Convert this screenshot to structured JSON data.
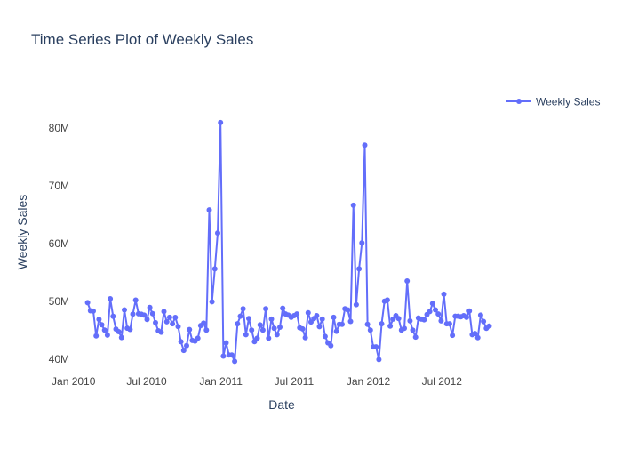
{
  "colors": {
    "series": "#636efa",
    "text": "#2a3f5f",
    "tick": "#444444",
    "background": "#ffffff"
  },
  "chart_data": {
    "type": "line",
    "title": "Time Series Plot of Weekly Sales",
    "xlabel": "Date",
    "ylabel": "Weekly Sales",
    "x_ticks": [
      {
        "date": "2010-01-01",
        "label": "Jan 2010"
      },
      {
        "date": "2010-07-01",
        "label": "Jul 2010"
      },
      {
        "date": "2011-01-01",
        "label": "Jan 2011"
      },
      {
        "date": "2011-07-01",
        "label": "Jul 2011"
      },
      {
        "date": "2012-01-01",
        "label": "Jan 2012"
      },
      {
        "date": "2012-07-01",
        "label": "Jul 2012"
      }
    ],
    "y_ticks": [
      {
        "value": 40000000,
        "label": "40M"
      },
      {
        "value": 50000000,
        "label": "50M"
      },
      {
        "value": 60000000,
        "label": "60M"
      },
      {
        "value": 70000000,
        "label": "70M"
      },
      {
        "value": 80000000,
        "label": "80M"
      }
    ],
    "xlim": [
      "2009-12-26",
      "2012-11-16"
    ],
    "ylim": [
      37500000,
      87500000
    ],
    "grid": false,
    "legend": {
      "position": "top-right",
      "entries": [
        "Weekly Sales"
      ]
    },
    "series": [
      {
        "name": "Weekly Sales",
        "mode": "lines+markers",
        "x": [
          "2010-02-05",
          "2010-02-12",
          "2010-02-19",
          "2010-02-26",
          "2010-03-05",
          "2010-03-12",
          "2010-03-19",
          "2010-03-26",
          "2010-04-02",
          "2010-04-09",
          "2010-04-16",
          "2010-04-23",
          "2010-04-30",
          "2010-05-07",
          "2010-05-14",
          "2010-05-21",
          "2010-05-28",
          "2010-06-04",
          "2010-06-11",
          "2010-06-18",
          "2010-06-25",
          "2010-07-02",
          "2010-07-09",
          "2010-07-16",
          "2010-07-23",
          "2010-07-30",
          "2010-08-06",
          "2010-08-13",
          "2010-08-20",
          "2010-08-27",
          "2010-09-03",
          "2010-09-10",
          "2010-09-17",
          "2010-09-24",
          "2010-10-01",
          "2010-10-08",
          "2010-10-15",
          "2010-10-22",
          "2010-10-29",
          "2010-11-05",
          "2010-11-12",
          "2010-11-19",
          "2010-11-26",
          "2010-12-03",
          "2010-12-10",
          "2010-12-17",
          "2010-12-24",
          "2010-12-31",
          "2011-01-07",
          "2011-01-14",
          "2011-01-21",
          "2011-01-28",
          "2011-02-04",
          "2011-02-11",
          "2011-02-18",
          "2011-02-25",
          "2011-03-04",
          "2011-03-11",
          "2011-03-18",
          "2011-03-25",
          "2011-04-01",
          "2011-04-08",
          "2011-04-15",
          "2011-04-22",
          "2011-04-29",
          "2011-05-06",
          "2011-05-13",
          "2011-05-20",
          "2011-05-27",
          "2011-06-03",
          "2011-06-10",
          "2011-06-17",
          "2011-06-24",
          "2011-07-01",
          "2011-07-08",
          "2011-07-15",
          "2011-07-22",
          "2011-07-29",
          "2011-08-05",
          "2011-08-12",
          "2011-08-19",
          "2011-08-26",
          "2011-09-02",
          "2011-09-09",
          "2011-09-16",
          "2011-09-23",
          "2011-09-30",
          "2011-10-07",
          "2011-10-14",
          "2011-10-21",
          "2011-10-28",
          "2011-11-04",
          "2011-11-11",
          "2011-11-18",
          "2011-11-25",
          "2011-12-02",
          "2011-12-09",
          "2011-12-16",
          "2011-12-23",
          "2011-12-30",
          "2012-01-06",
          "2012-01-13",
          "2012-01-20",
          "2012-01-27",
          "2012-02-03",
          "2012-02-10",
          "2012-02-17",
          "2012-02-24",
          "2012-03-02",
          "2012-03-09",
          "2012-03-16",
          "2012-03-23",
          "2012-03-30",
          "2012-04-06",
          "2012-04-13",
          "2012-04-20",
          "2012-04-27",
          "2012-05-04",
          "2012-05-11",
          "2012-05-18",
          "2012-05-25",
          "2012-06-01",
          "2012-06-08",
          "2012-06-15",
          "2012-06-22",
          "2012-06-29",
          "2012-07-06",
          "2012-07-13",
          "2012-07-20",
          "2012-07-27",
          "2012-08-03",
          "2012-08-10",
          "2012-08-17",
          "2012-08-24",
          "2012-08-31",
          "2012-09-07",
          "2012-09-14",
          "2012-09-21",
          "2012-09-28",
          "2012-10-05",
          "2012-10-12",
          "2012-10-19",
          "2012-10-26"
        ],
        "y": [
          49750000,
          48340000,
          48280000,
          44000000,
          46870000,
          45930000,
          44990000,
          44130000,
          50420000,
          47370000,
          45180000,
          44730000,
          43710000,
          48500000,
          45330000,
          45120000,
          47760000,
          50190000,
          47830000,
          47740000,
          47590000,
          46850000,
          48910000,
          47850000,
          46280000,
          44890000,
          44640000,
          48200000,
          46440000,
          47200000,
          46100000,
          47190000,
          45630000,
          43010000,
          41490000,
          42300000,
          45100000,
          43200000,
          43100000,
          43600000,
          45800000,
          46200000,
          45000000,
          65800000,
          49900000,
          55600000,
          61800000,
          80900000,
          40500000,
          42800000,
          40700000,
          40700000,
          39600000,
          46100000,
          47400000,
          48700000,
          44200000,
          47000000,
          45000000,
          43000000,
          43600000,
          45900000,
          45000000,
          48700000,
          43600000,
          46900000,
          45300000,
          44200000,
          45500000,
          48800000,
          47800000,
          47600000,
          47200000,
          47500000,
          47800000,
          45400000,
          45200000,
          43700000,
          48000000,
          46400000,
          47000000,
          47500000,
          45600000,
          46900000,
          43900000,
          42800000,
          42300000,
          47200000,
          44800000,
          46000000,
          46000000,
          48700000,
          48500000,
          46500000,
          66600000,
          49400000,
          55600000,
          60100000,
          77000000,
          46000000,
          45000000,
          42100000,
          42100000,
          39900000,
          46100000,
          50000000,
          50200000,
          45700000,
          46900000,
          47500000,
          47000000,
          45000000,
          45300000,
          53500000,
          46600000,
          45000000,
          43800000,
          47100000,
          46900000,
          46800000,
          47700000,
          48200000,
          49600000,
          48500000,
          47800000,
          46600000,
          51200000,
          46100000,
          46100000,
          44100000,
          47400000,
          47400000,
          47300000,
          47500000,
          47200000,
          48300000,
          44200000,
          44400000,
          43700000,
          47600000,
          46500000,
          45300000,
          45700000
        ]
      }
    ]
  }
}
